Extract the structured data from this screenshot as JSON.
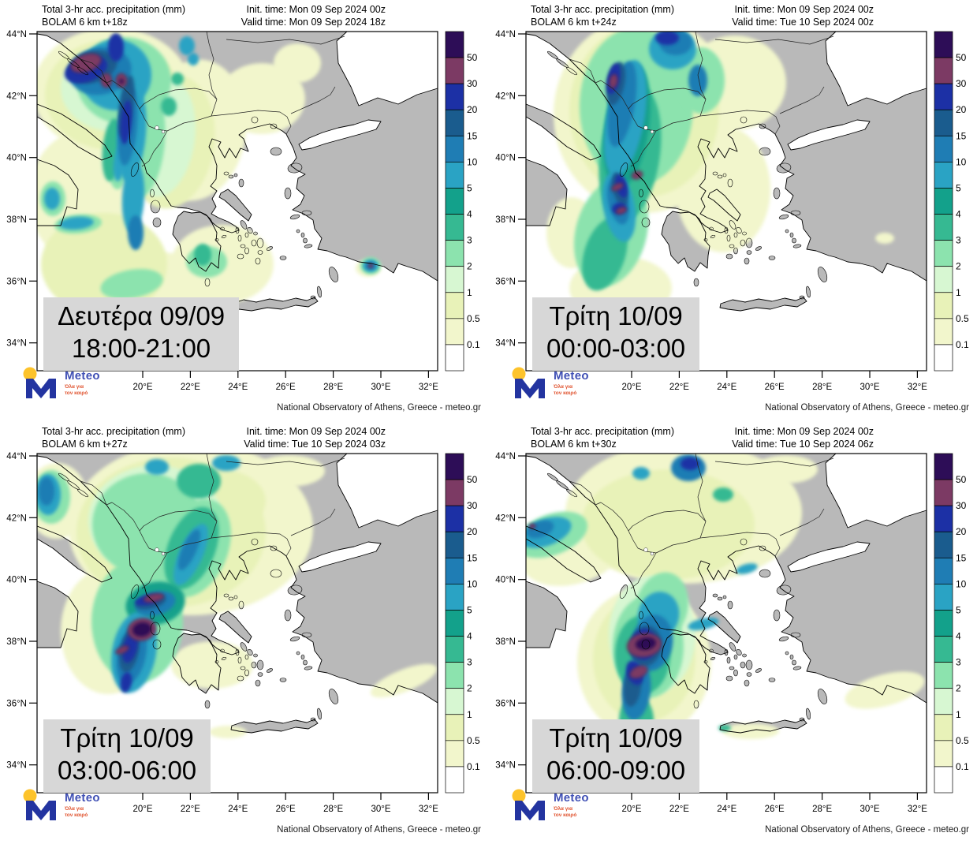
{
  "footer_credit": "National Observatory of Athens, Greece - meteo.gr",
  "logo": {
    "name": "Meteo",
    "tagline1": "Όλα για",
    "tagline2": "τον καιρό"
  },
  "axes": {
    "lats": [
      "44°N",
      "42°N",
      "40°N",
      "38°N",
      "36°N",
      "34°N"
    ],
    "lons": [
      "20°E",
      "22°E",
      "24°E",
      "26°E",
      "28°E",
      "30°E",
      "32°E"
    ]
  },
  "scale": {
    "title": "Total 3-hr acc. precipitation (mm)",
    "values": [
      "50",
      "30",
      "20",
      "15",
      "10",
      "5",
      "4",
      "3",
      "2",
      "1",
      "0.5",
      "0.1"
    ],
    "colors": [
      "#2d0d57",
      "#7c3a64",
      "#1c30a5",
      "#1a5c8e",
      "#1f7db4",
      "#2aa3c4",
      "#13a18b",
      "#36b992",
      "#8ce3ae",
      "#d7f7d2",
      "#e8f2b8",
      "#f2f6cc",
      "#ffffff"
    ],
    "level_colors": {
      "p50": "#2d0d57",
      "p30": "#7c3a64",
      "p20": "#1c30a5",
      "p15": "#1a5c8e",
      "p10": "#1f7db4",
      "p5": "#2aa3c4",
      "p4": "#13a18b",
      "p3": "#36b992",
      "p2": "#8ce3ae",
      "p1": "#d7f7d2",
      "p05": "#e8f2b8",
      "p01": "#f2f6cc"
    },
    "land_color": "#b9b9b9",
    "box_color": "#d7d7d7"
  },
  "panels": [
    {
      "title1": "Total 3-hr acc. precipitation (mm)",
      "title2": "BOLAM 6 km t+18z",
      "init_time": "Init. time: Mon 09 Sep 2024 00z",
      "valid_time": "Valid time: Mon 09 Sep 2024 18z",
      "day_label": "Δευτέρα 09/09",
      "hours_label": "18:00-21:00",
      "precip": [
        [
          "p01",
          95,
          75,
          100,
          80,
          0
        ],
        [
          "p01",
          200,
          125,
          65,
          90,
          8
        ],
        [
          "p01",
          60,
          210,
          70,
          85,
          0
        ],
        [
          "p01",
          125,
          335,
          95,
          55,
          -10
        ],
        [
          "p01",
          235,
          295,
          65,
          50,
          0
        ],
        [
          "p01",
          285,
          85,
          55,
          45,
          0
        ],
        [
          "p01",
          330,
          40,
          30,
          25,
          0
        ],
        [
          "p01",
          420,
          300,
          16,
          11,
          0
        ],
        [
          "p05",
          95,
          80,
          85,
          70,
          0
        ],
        [
          "p05",
          170,
          140,
          55,
          85,
          8
        ],
        [
          "p05",
          85,
          295,
          80,
          65,
          0
        ],
        [
          "p1",
          100,
          72,
          70,
          55,
          0
        ],
        [
          "p1",
          160,
          135,
          40,
          75,
          8
        ],
        [
          "p2",
          110,
          62,
          60,
          55,
          0
        ],
        [
          "p2",
          135,
          140,
          27,
          70,
          5
        ],
        [
          "p2",
          120,
          320,
          40,
          18,
          -10
        ],
        [
          "p2",
          215,
          292,
          26,
          20,
          0
        ],
        [
          "p2",
          423,
          297,
          13,
          11,
          0
        ],
        [
          "p2",
          20,
          212,
          16,
          22,
          0
        ],
        [
          "p2",
          102,
          170,
          12,
          30,
          0
        ],
        [
          "p2",
          52,
          244,
          30,
          12,
          -5
        ],
        [
          "p3",
          167,
          95,
          10,
          12,
          0
        ],
        [
          "p3",
          178,
          60,
          8,
          8,
          0
        ],
        [
          "p3",
          95,
          150,
          12,
          40,
          5
        ],
        [
          "p3",
          210,
          283,
          11,
          14,
          0
        ],
        [
          "p5",
          100,
          55,
          45,
          45,
          0
        ],
        [
          "p5",
          120,
          130,
          18,
          60,
          5
        ],
        [
          "p5",
          122,
          210,
          14,
          45,
          3
        ],
        [
          "p5",
          190,
          18,
          10,
          12,
          0
        ],
        [
          "p5",
          198,
          35,
          7,
          8,
          0
        ],
        [
          "p5",
          19,
          212,
          10,
          14,
          0
        ],
        [
          "p5",
          104,
          168,
          7,
          22,
          5
        ],
        [
          "p5",
          50,
          243,
          22,
          8,
          -5
        ],
        [
          "p5",
          423,
          297,
          10,
          8,
          0
        ],
        [
          "p10",
          80,
          50,
          40,
          30,
          -10
        ],
        [
          "p10",
          115,
          120,
          12,
          50,
          5
        ],
        [
          "p10",
          125,
          255,
          10,
          22,
          0
        ],
        [
          "p10",
          423,
          297,
          6,
          5,
          0
        ],
        [
          "p15",
          70,
          45,
          32,
          20,
          -15
        ],
        [
          "p15",
          113,
          95,
          9,
          40,
          8
        ],
        [
          "p20",
          62,
          48,
          28,
          16,
          -18
        ],
        [
          "p20",
          113,
          115,
          7,
          28,
          5
        ],
        [
          "p20",
          100,
          20,
          10,
          18,
          0
        ],
        [
          "p30",
          62,
          40,
          20,
          11,
          -18
        ],
        [
          "p30",
          88,
          62,
          7,
          9,
          0
        ],
        [
          "p30",
          107,
          62,
          7,
          9,
          0
        ],
        [
          "p30",
          423,
          297,
          3,
          2.5,
          0
        ],
        [
          "p50",
          107,
          63,
          3.5,
          4,
          0
        ]
      ]
    },
    {
      "title1": "Total 3-hr acc. precipitation (mm)",
      "title2": "BOLAM 6 km t+24z",
      "init_time": "Init. time: Mon 09 Sep 2024 00z",
      "valid_time": "Valid time: Tue 10 Sep 2024 00z",
      "day_label": "Τρίτη 10/09",
      "hours_label": "00:00-03:00",
      "precip": [
        [
          "p01",
          150,
          105,
          115,
          125,
          0
        ],
        [
          "p01",
          265,
          65,
          65,
          60,
          0
        ],
        [
          "p01",
          58,
          255,
          32,
          45,
          0
        ],
        [
          "p01",
          120,
          325,
          65,
          40,
          0
        ],
        [
          "p01",
          250,
          200,
          60,
          80,
          0
        ],
        [
          "p01",
          455,
          262,
          12,
          7,
          0
        ],
        [
          "p05",
          150,
          100,
          95,
          110,
          0
        ],
        [
          "p2",
          140,
          95,
          72,
          100,
          0
        ],
        [
          "p2",
          108,
          255,
          45,
          70,
          15
        ],
        [
          "p2",
          222,
          62,
          30,
          42,
          0
        ],
        [
          "p3",
          132,
          155,
          38,
          88,
          8
        ],
        [
          "p3",
          100,
          282,
          26,
          48,
          18
        ],
        [
          "p4",
          128,
          120,
          28,
          80,
          8
        ],
        [
          "p5",
          126,
          110,
          24,
          75,
          10
        ],
        [
          "p5",
          118,
          222,
          20,
          45,
          -10
        ],
        [
          "p5",
          186,
          22,
          30,
          26,
          0
        ],
        [
          "p10",
          122,
          92,
          16,
          55,
          10
        ],
        [
          "p10",
          117,
          215,
          13,
          30,
          -12
        ],
        [
          "p10",
          190,
          14,
          21,
          16,
          0
        ],
        [
          "p10",
          218,
          62,
          12,
          20,
          0
        ],
        [
          "p15",
          114,
          66,
          11,
          28,
          12
        ],
        [
          "p15",
          119,
          200,
          9,
          22,
          -14
        ],
        [
          "p20",
          111,
          60,
          8,
          20,
          12
        ],
        [
          "p20",
          121,
          196,
          7,
          15,
          -15
        ],
        [
          "p20",
          179,
          8,
          15,
          9,
          0
        ],
        [
          "p20",
          118,
          224,
          9,
          7,
          -15
        ],
        [
          "p30",
          111,
          63,
          5,
          9,
          10
        ],
        [
          "p30",
          141,
          182,
          7,
          5,
          -20
        ],
        [
          "p30",
          116,
          197,
          8,
          4,
          -25
        ],
        [
          "p30",
          121,
          227,
          7,
          4,
          -20
        ]
      ]
    },
    {
      "title1": "Total 3-hr acc. precipitation (mm)",
      "title2": "BOLAM 6 km t+27z",
      "init_time": "Init. time: Mon 09 Sep 2024 00z",
      "valid_time": "Valid time: Tue 10 Sep 2024 03z",
      "day_label": "Τρίτη 10/09",
      "hours_label": "03:00-06:00",
      "precip": [
        [
          "p01",
          195,
          95,
          155,
          110,
          0
        ],
        [
          "p01",
          90,
          225,
          60,
          80,
          0
        ],
        [
          "p01",
          222,
          268,
          52,
          30,
          0
        ],
        [
          "p01",
          465,
          288,
          45,
          14,
          -22
        ],
        [
          "p01",
          242,
          353,
          24,
          8,
          0
        ],
        [
          "p01",
          320,
          22,
          45,
          20,
          0
        ],
        [
          "p01",
          25,
          60,
          40,
          48,
          0
        ],
        [
          "p05",
          170,
          100,
          120,
          95,
          0
        ],
        [
          "p05",
          230,
          60,
          60,
          40,
          0
        ],
        [
          "p1",
          150,
          85,
          85,
          70,
          0
        ],
        [
          "p2",
          140,
          90,
          70,
          65,
          0
        ],
        [
          "p2",
          127,
          213,
          58,
          78,
          0
        ],
        [
          "p2",
          200,
          120,
          42,
          65,
          22
        ],
        [
          "p2",
          18,
          55,
          24,
          34,
          0
        ],
        [
          "p3",
          205,
          35,
          28,
          22,
          0
        ],
        [
          "p3",
          196,
          120,
          30,
          55,
          22
        ],
        [
          "p4",
          150,
          190,
          38,
          27,
          -12
        ],
        [
          "p5",
          240,
          12,
          18,
          10,
          0
        ],
        [
          "p5",
          152,
          17,
          15,
          10,
          0
        ],
        [
          "p5",
          195,
          128,
          15,
          42,
          24
        ],
        [
          "p5",
          123,
          252,
          28,
          52,
          10
        ],
        [
          "p5",
          14,
          52,
          16,
          26,
          0
        ],
        [
          "p10",
          150,
          190,
          26,
          15,
          -14
        ],
        [
          "p10",
          120,
          255,
          18,
          38,
          12
        ],
        [
          "p10",
          193,
          122,
          9,
          28,
          24
        ],
        [
          "p10",
          12,
          48,
          10,
          18,
          0
        ],
        [
          "p15",
          144,
          188,
          20,
          9,
          -14
        ],
        [
          "p15",
          117,
          250,
          12,
          28,
          11
        ],
        [
          "p20",
          140,
          186,
          16,
          6,
          -12
        ],
        [
          "p20",
          118,
          246,
          9,
          20,
          14
        ],
        [
          "p20",
          113,
          290,
          7,
          13,
          10
        ],
        [
          "p30",
          148,
          183,
          13,
          5,
          -12
        ],
        [
          "p30",
          108,
          249,
          9,
          4,
          -25
        ],
        [
          "p30",
          133,
          223,
          18,
          14,
          -10
        ],
        [
          "p50",
          133,
          223,
          13,
          10,
          -10
        ]
      ]
    },
    {
      "title1": "Total 3-hr acc. precipitation (mm)",
      "title2": "BOLAM 6 km t+30z",
      "init_time": "Init. time: Mon 09 Sep 2024 00z",
      "valid_time": "Valid time: Tue 10 Sep 2024 06z",
      "day_label": "Τρίτη 10/09",
      "hours_label": "06:00-09:00",
      "precip": [
        [
          "p01",
          200,
          75,
          150,
          90,
          0
        ],
        [
          "p01",
          150,
          265,
          85,
          95,
          0
        ],
        [
          "p01",
          455,
          300,
          52,
          20,
          -15
        ],
        [
          "p01",
          285,
          352,
          36,
          10,
          0
        ],
        [
          "p01",
          60,
          120,
          70,
          45,
          -18
        ],
        [
          "p01",
          330,
          20,
          40,
          18,
          0
        ],
        [
          "p05",
          180,
          90,
          110,
          70,
          0
        ],
        [
          "p05",
          150,
          260,
          65,
          80,
          0
        ],
        [
          "p1",
          160,
          230,
          55,
          75,
          0
        ],
        [
          "p2",
          155,
          245,
          45,
          65,
          0
        ],
        [
          "p2",
          172,
          195,
          33,
          45,
          14
        ],
        [
          "p2",
          32,
          103,
          48,
          26,
          -20
        ],
        [
          "p3",
          250,
          52,
          13,
          9,
          0
        ],
        [
          "p3",
          148,
          255,
          35,
          50,
          0
        ],
        [
          "p3",
          140,
          338,
          22,
          32,
          0
        ],
        [
          "p3",
          252,
          348,
          8,
          4,
          0
        ],
        [
          "p5",
          146,
          25,
          11,
          8,
          0
        ],
        [
          "p5",
          280,
          146,
          14,
          6,
          -15
        ],
        [
          "p5",
          225,
          216,
          20,
          7,
          -12
        ],
        [
          "p5",
          25,
          100,
          34,
          17,
          -20
        ],
        [
          "p5",
          168,
          205,
          26,
          30,
          15
        ],
        [
          "p10",
          18,
          96,
          18,
          10,
          -20
        ],
        [
          "p10",
          206,
          18,
          22,
          17,
          0
        ],
        [
          "p10",
          160,
          240,
          26,
          36,
          10
        ],
        [
          "p10",
          140,
          300,
          18,
          38,
          6
        ],
        [
          "p15",
          152,
          244,
          20,
          26,
          8
        ],
        [
          "p15",
          135,
          295,
          11,
          26,
          6
        ],
        [
          "p20",
          208,
          13,
          12,
          8,
          0
        ],
        [
          "p20",
          150,
          242,
          16,
          20,
          5
        ],
        [
          "p20",
          138,
          278,
          10,
          16,
          -20
        ],
        [
          "p30",
          150,
          243,
          22,
          15,
          -8
        ],
        [
          "p30",
          143,
          277,
          12,
          7,
          -25
        ],
        [
          "p30",
          8,
          92,
          4,
          3,
          0
        ],
        [
          "p50",
          152,
          241,
          14,
          9,
          -8
        ]
      ]
    }
  ]
}
